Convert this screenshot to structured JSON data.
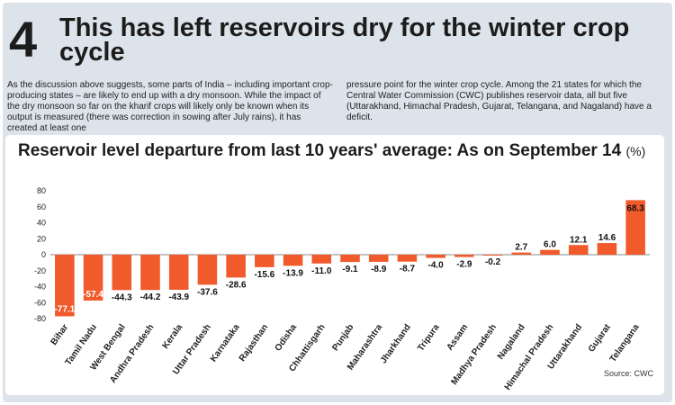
{
  "article": {
    "number": "4",
    "headline": "This has left reservoirs dry for the winter crop cycle",
    "paragraph_left": "As the discussion above suggests, some parts of India – including important crop-producing states – are likely to end up with a dry monsoon. While the impact of the dry monsoon so far on the kharif crops will likely only be known when its output is measured (there was correction in sowing after July rains), it has created at least one",
    "paragraph_right": "pressure point for the winter crop cycle. Among the 21 states for which the Central Water Commission (CWC) publishes reservoir data, all but five (Uttarakhand, Himachal Pradesh, Gujarat, Telangana, and Nagaland) have a deficit."
  },
  "chart_data": {
    "type": "bar",
    "title": "Reservoir level departure from last 10 years' average: As on September 14",
    "unit": "(%)",
    "xlabel": "",
    "ylabel": "",
    "ylim": [
      -80,
      80
    ],
    "yticks": [
      80,
      60,
      40,
      20,
      0,
      -20,
      -40,
      -60,
      -80
    ],
    "grid": false,
    "legend": "none",
    "categories": [
      "Bihar",
      "Tamil Nadu",
      "West Bengal",
      "Andhra Pradesh",
      "Kerala",
      "Uttar Pradesh",
      "Karnataka",
      "Rajasthan",
      "Odisha",
      "Chhattisgarh",
      "Punjab",
      "Maharashtra",
      "Jharkhand",
      "Tripura",
      "Assam",
      "Madhya Pradesh",
      "Nagaland",
      "Himachal Pradesh",
      "Uttarakhand",
      "Gujarat",
      "Telangana"
    ],
    "values": [
      -77.1,
      -57.4,
      -44.3,
      -44.2,
      -43.9,
      -37.6,
      -28.6,
      -15.6,
      -13.9,
      -11.0,
      -9.1,
      -8.9,
      -8.7,
      -4.0,
      -2.9,
      -0.2,
      2.7,
      6.0,
      12.1,
      14.6,
      68.3
    ],
    "value_labels": [
      "-77.1",
      "-57.4",
      "-44.3",
      "-44.2",
      "-43.9",
      "-37.6",
      "-28.6",
      "-15.6",
      "-13.9",
      "-11.0",
      "-9.1",
      "-8.9",
      "-8.7",
      "-4.0",
      "-2.9",
      "-0.2",
      "2.7",
      "6.0",
      "12.1",
      "14.6",
      "68.3"
    ],
    "source": "Source: CWC"
  },
  "colors": {
    "bar": "#f15a2b",
    "panel": "#dde3ea",
    "card": "#ffffff",
    "text": "#1c1c1c"
  }
}
